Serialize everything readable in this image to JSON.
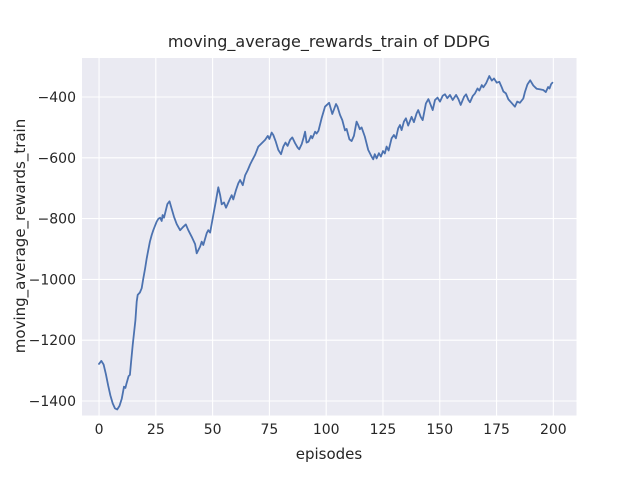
{
  "chart_data": {
    "type": "line",
    "title": "moving_average_rewards_train of DDPG",
    "xlabel": "episodes",
    "ylabel": "moving_average_rewards_train",
    "xlim": [
      -7.5,
      210.2
    ],
    "ylim": [
      -1447.7,
      -271.7
    ],
    "grid": true,
    "legend_position": "none",
    "style": {
      "fig_bg": "#ffffff",
      "plot_bg": "#eaeaf2",
      "grid_color": "#ffffff",
      "line_color": "#4c72b0",
      "text_color": "#262626",
      "line_width": 1.8
    },
    "x_ticks": [
      {
        "v": 0,
        "label": "0"
      },
      {
        "v": 25,
        "label": "25"
      },
      {
        "v": 50,
        "label": "50"
      },
      {
        "v": 75,
        "label": "75"
      },
      {
        "v": 100,
        "label": "100"
      },
      {
        "v": 125,
        "label": "125"
      },
      {
        "v": 150,
        "label": "150"
      },
      {
        "v": 175,
        "label": "175"
      },
      {
        "v": 200,
        "label": "200"
      }
    ],
    "y_ticks": [
      {
        "v": -400,
        "label": "−400"
      },
      {
        "v": -600,
        "label": "−600"
      },
      {
        "v": -800,
        "label": "−800"
      },
      {
        "v": -1000,
        "label": "−1000"
      },
      {
        "v": -1200,
        "label": "−1200"
      },
      {
        "v": -1400,
        "label": "−1400"
      }
    ],
    "series": [
      {
        "name": "moving_average_rewards_train",
        "color": "#4c72b0",
        "points": [
          [
            0,
            -1278
          ],
          [
            1,
            -1268
          ],
          [
            2,
            -1280
          ],
          [
            3,
            -1312
          ],
          [
            4,
            -1348
          ],
          [
            5,
            -1382
          ],
          [
            6,
            -1408
          ],
          [
            7,
            -1424
          ],
          [
            8,
            -1428
          ],
          [
            9,
            -1416
          ],
          [
            10,
            -1392
          ],
          [
            11,
            -1353
          ],
          [
            11.6,
            -1357
          ],
          [
            12,
            -1345
          ],
          [
            13,
            -1318
          ],
          [
            13.6,
            -1314
          ],
          [
            14.1,
            -1271
          ],
          [
            14.8,
            -1216
          ],
          [
            15.4,
            -1177
          ],
          [
            16,
            -1135
          ],
          [
            16.6,
            -1073
          ],
          [
            17,
            -1051
          ],
          [
            18,
            -1043
          ],
          [
            18.8,
            -1029
          ],
          [
            19.5,
            -997
          ],
          [
            20.3,
            -964
          ],
          [
            21,
            -931
          ],
          [
            21.7,
            -903
          ],
          [
            22.4,
            -876
          ],
          [
            23.2,
            -854
          ],
          [
            23.9,
            -838
          ],
          [
            24.7,
            -823
          ],
          [
            25.4,
            -810
          ],
          [
            26.1,
            -801
          ],
          [
            26.9,
            -797
          ],
          [
            27.6,
            -808
          ],
          [
            28,
            -788
          ],
          [
            28.6,
            -797
          ],
          [
            30.1,
            -752
          ],
          [
            31,
            -743
          ],
          [
            32,
            -768
          ],
          [
            33,
            -794
          ],
          [
            34.2,
            -818
          ],
          [
            35.7,
            -838
          ],
          [
            37.1,
            -827
          ],
          [
            38.2,
            -819
          ],
          [
            39.3,
            -838
          ],
          [
            40.8,
            -860
          ],
          [
            42.3,
            -884
          ],
          [
            43,
            -914
          ],
          [
            44.5,
            -892
          ],
          [
            45.2,
            -876
          ],
          [
            45.9,
            -887
          ],
          [
            47.4,
            -848
          ],
          [
            48.1,
            -838
          ],
          [
            48.9,
            -846
          ],
          [
            50.3,
            -788
          ],
          [
            51.5,
            -740
          ],
          [
            52.5,
            -697
          ],
          [
            53.3,
            -722
          ],
          [
            54,
            -753
          ],
          [
            55,
            -747
          ],
          [
            55.9,
            -764
          ],
          [
            57.7,
            -734
          ],
          [
            58.4,
            -723
          ],
          [
            59.1,
            -737
          ],
          [
            60.3,
            -706
          ],
          [
            61.3,
            -684
          ],
          [
            62.1,
            -673
          ],
          [
            63.3,
            -690
          ],
          [
            64.3,
            -658
          ],
          [
            65.5,
            -640
          ],
          [
            66.5,
            -622
          ],
          [
            67.5,
            -607
          ],
          [
            68.7,
            -590
          ],
          [
            70.1,
            -563
          ],
          [
            71.6,
            -552
          ],
          [
            73.1,
            -541
          ],
          [
            74.3,
            -528
          ],
          [
            75,
            -538
          ],
          [
            76,
            -517
          ],
          [
            76.7,
            -525
          ],
          [
            77.8,
            -547
          ],
          [
            78.9,
            -574
          ],
          [
            80.1,
            -588
          ],
          [
            81.1,
            -563
          ],
          [
            82.1,
            -550
          ],
          [
            83,
            -561
          ],
          [
            84.1,
            -541
          ],
          [
            85.1,
            -533
          ],
          [
            86.3,
            -552
          ],
          [
            87.4,
            -566
          ],
          [
            88.1,
            -572
          ],
          [
            89.2,
            -555
          ],
          [
            90,
            -535
          ],
          [
            90.7,
            -514
          ],
          [
            91.4,
            -550
          ],
          [
            92.2,
            -547
          ],
          [
            93.3,
            -528
          ],
          [
            93.9,
            -536
          ],
          [
            95.1,
            -514
          ],
          [
            95.8,
            -520
          ],
          [
            96.6,
            -511
          ],
          [
            98,
            -470
          ],
          [
            99.5,
            -432
          ],
          [
            101.3,
            -419
          ],
          [
            102.7,
            -456
          ],
          [
            104.3,
            -423
          ],
          [
            105,
            -432
          ],
          [
            106.1,
            -459
          ],
          [
            107.1,
            -476
          ],
          [
            108.3,
            -510
          ],
          [
            109,
            -505
          ],
          [
            110.2,
            -539
          ],
          [
            111.2,
            -545
          ],
          [
            112.2,
            -528
          ],
          [
            113.4,
            -481
          ],
          [
            114.1,
            -492
          ],
          [
            114.8,
            -506
          ],
          [
            115.6,
            -500
          ],
          [
            117,
            -530
          ],
          [
            118.5,
            -574
          ],
          [
            120,
            -596
          ],
          [
            120.7,
            -605
          ],
          [
            121.4,
            -588
          ],
          [
            122.2,
            -602
          ],
          [
            123.2,
            -585
          ],
          [
            124.1,
            -596
          ],
          [
            125,
            -578
          ],
          [
            125.8,
            -586
          ],
          [
            126.6,
            -563
          ],
          [
            127.5,
            -576
          ],
          [
            128.8,
            -536
          ],
          [
            129.8,
            -525
          ],
          [
            130.7,
            -536
          ],
          [
            131.7,
            -503
          ],
          [
            132.5,
            -492
          ],
          [
            133.2,
            -509
          ],
          [
            134.2,
            -481
          ],
          [
            135.1,
            -470
          ],
          [
            136.1,
            -494
          ],
          [
            137.6,
            -465
          ],
          [
            138.6,
            -483
          ],
          [
            139.8,
            -454
          ],
          [
            140.5,
            -443
          ],
          [
            141.6,
            -465
          ],
          [
            142.5,
            -476
          ],
          [
            143.9,
            -421
          ],
          [
            145,
            -407
          ],
          [
            146,
            -426
          ],
          [
            146.9,
            -443
          ],
          [
            147.9,
            -410
          ],
          [
            149,
            -402
          ],
          [
            150.1,
            -415
          ],
          [
            151.3,
            -396
          ],
          [
            152.3,
            -391
          ],
          [
            153.3,
            -404
          ],
          [
            154.5,
            -393
          ],
          [
            155.7,
            -410
          ],
          [
            157.2,
            -393
          ],
          [
            158.2,
            -407
          ],
          [
            159.2,
            -426
          ],
          [
            160.7,
            -399
          ],
          [
            161.6,
            -391
          ],
          [
            162.6,
            -410
          ],
          [
            163.3,
            -417
          ],
          [
            164.5,
            -397
          ],
          [
            165.5,
            -388
          ],
          [
            166.6,
            -372
          ],
          [
            167.4,
            -379
          ],
          [
            168.5,
            -361
          ],
          [
            169.2,
            -368
          ],
          [
            170.4,
            -355
          ],
          [
            171.8,
            -331
          ],
          [
            172.9,
            -346
          ],
          [
            173.9,
            -339
          ],
          [
            175.1,
            -353
          ],
          [
            176.2,
            -350
          ],
          [
            177.2,
            -366
          ],
          [
            178,
            -382
          ],
          [
            179.1,
            -388
          ],
          [
            180.2,
            -408
          ],
          [
            181.6,
            -419
          ],
          [
            183.1,
            -432
          ],
          [
            184.1,
            -415
          ],
          [
            185.3,
            -419
          ],
          [
            186.8,
            -405
          ],
          [
            187.5,
            -384
          ],
          [
            188.6,
            -359
          ],
          [
            189.8,
            -345
          ],
          [
            191.2,
            -362
          ],
          [
            192.7,
            -373
          ],
          [
            194.2,
            -375
          ],
          [
            195.6,
            -377
          ],
          [
            196.7,
            -384
          ],
          [
            197.7,
            -367
          ],
          [
            198.3,
            -372
          ],
          [
            199,
            -358
          ],
          [
            199.6,
            -353
          ]
        ]
      }
    ]
  }
}
